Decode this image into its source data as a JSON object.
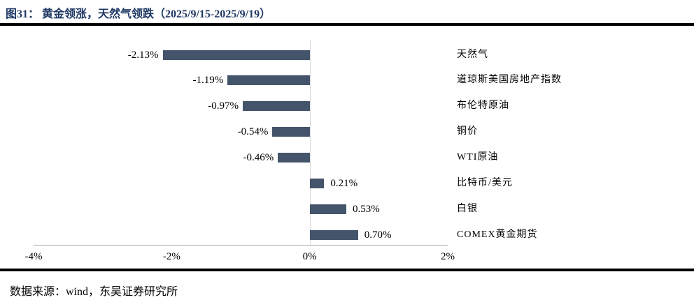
{
  "header": {
    "title": "图31：  黄金领涨，天然气领跌（2025/9/15-2025/9/19）"
  },
  "footer": {
    "source": "数据来源：wind，东吴证券研究所"
  },
  "colors": {
    "title": "#1F3864",
    "bar": "#44546A",
    "rule": "#000000",
    "axis_line": "#A6A6A6",
    "zero_line": "#D9D9D9",
    "text": "#000000"
  },
  "chart_data": {
    "type": "bar",
    "orientation": "horizontal",
    "title": "黄金领涨，天然气领跌（2025/9/15-2025/9/19）",
    "xlabel": "",
    "ylabel": "",
    "categories": [
      "天然气",
      "道琼斯美国房地产指数",
      "布伦特原油",
      "铜价",
      "WTI原油",
      "比特币/美元",
      "白银",
      "COMEX黄金期货"
    ],
    "values": [
      -2.13,
      -1.19,
      -0.97,
      -0.54,
      -0.46,
      0.21,
      0.53,
      0.7
    ],
    "value_labels": [
      "-2.13%",
      "-1.19%",
      "-0.97%",
      "-0.54%",
      "-0.46%",
      "0.21%",
      "0.53%",
      "0.70%"
    ],
    "xlim": [
      -4,
      2
    ],
    "xticks": [
      -4,
      -2,
      0,
      2
    ],
    "xtick_labels": [
      "-4%",
      "-2%",
      "0%",
      "2%"
    ],
    "bar_color": "#44546A",
    "grid": "zero-line-only",
    "legend": "none"
  }
}
